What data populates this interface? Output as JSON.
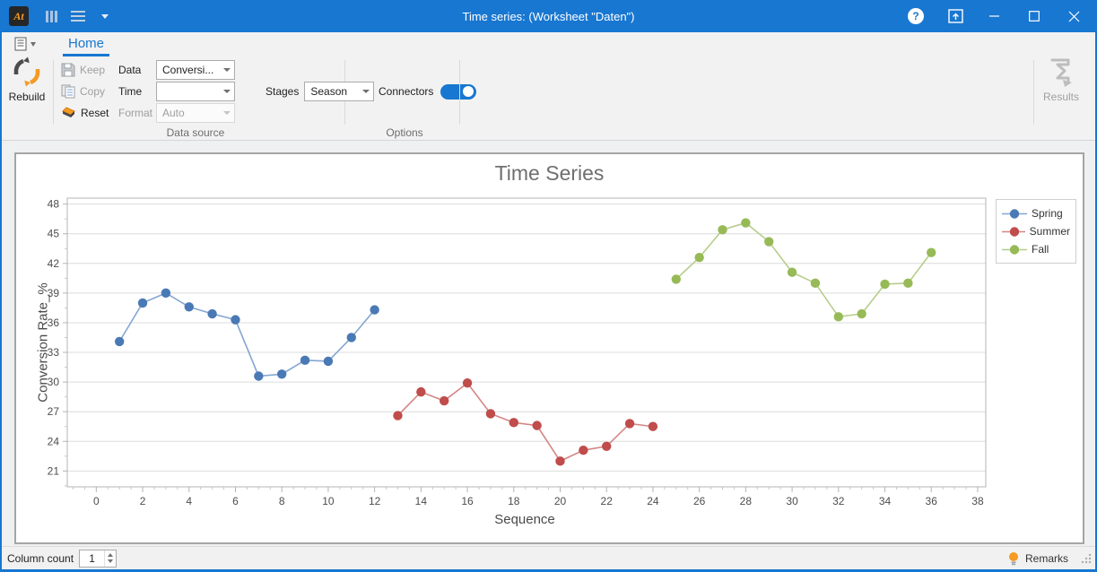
{
  "window": {
    "title": "Time series:  (Worksheet \"Daten\")"
  },
  "titlebar": {
    "icons": [
      "app-logo",
      "columns-icon",
      "menu-lines-icon",
      "caret-down-icon",
      "help-icon",
      "ribbon-display-icon",
      "minimize-icon",
      "maximize-icon",
      "close-icon"
    ]
  },
  "ribbon": {
    "tab": {
      "label": "Home",
      "active": true
    },
    "rebuild": {
      "label": "Rebuild"
    },
    "keep": {
      "label": "Keep",
      "enabled": false
    },
    "copy": {
      "label": "Copy",
      "enabled": false
    },
    "reset": {
      "label": "Reset",
      "enabled": true
    },
    "fields": [
      {
        "label": "Data",
        "value": "Conversi...",
        "enabled": true
      },
      {
        "label": "Time",
        "value": "",
        "enabled": true
      },
      {
        "label": "Format",
        "value": "Auto",
        "enabled": false
      }
    ],
    "stages": {
      "label": "Stages",
      "value": "Season"
    },
    "connectors": {
      "label": "Connectors",
      "state": "on"
    },
    "results": {
      "label": "Results",
      "enabled": false
    },
    "group_labels": {
      "data_source": "Data source",
      "options": "Options"
    }
  },
  "chart_data": {
    "type": "line",
    "title": "Time Series",
    "xlabel": "Sequence",
    "ylabel": "Conversion Rate_%",
    "xlim": [
      -1.25,
      38.35
    ],
    "ylim": [
      19.4,
      48.6
    ],
    "x_ticks": [
      0,
      2,
      4,
      6,
      8,
      10,
      12,
      14,
      16,
      18,
      20,
      22,
      24,
      26,
      28,
      30,
      32,
      34,
      36,
      38
    ],
    "y_ticks": [
      21,
      24,
      27,
      30,
      33,
      36,
      39,
      42,
      45,
      48
    ],
    "grid": "horizontal",
    "legend_position": "right",
    "series": [
      {
        "name": "Spring",
        "color": "#4a7ab5",
        "line_color": "#84a5d1",
        "x": [
          1,
          2,
          3,
          4,
          5,
          6,
          7,
          8,
          9,
          10,
          11,
          12
        ],
        "values": [
          34.1,
          38.0,
          39.0,
          37.6,
          36.9,
          36.3,
          30.6,
          30.8,
          32.2,
          32.1,
          34.5,
          37.3
        ]
      },
      {
        "name": "Summer",
        "color": "#c04c4c",
        "line_color": "#d48585",
        "x": [
          13,
          14,
          15,
          16,
          17,
          18,
          19,
          20,
          21,
          22,
          23,
          24
        ],
        "values": [
          26.6,
          29.0,
          28.1,
          29.9,
          26.8,
          25.9,
          25.6,
          22.0,
          23.1,
          23.5,
          25.8,
          25.5
        ]
      },
      {
        "name": "Fall",
        "color": "#97ba57",
        "line_color": "#b6cd8b",
        "x": [
          25,
          26,
          27,
          28,
          29,
          30,
          31,
          32,
          33,
          34,
          35,
          36
        ],
        "values": [
          40.4,
          42.6,
          45.4,
          46.1,
          44.2,
          41.1,
          40.0,
          36.6,
          36.9,
          39.9,
          40.0,
          43.1
        ]
      }
    ]
  },
  "statusbar": {
    "column_count_label": "Column count",
    "column_count_value": "1",
    "remarks_label": "Remarks"
  }
}
